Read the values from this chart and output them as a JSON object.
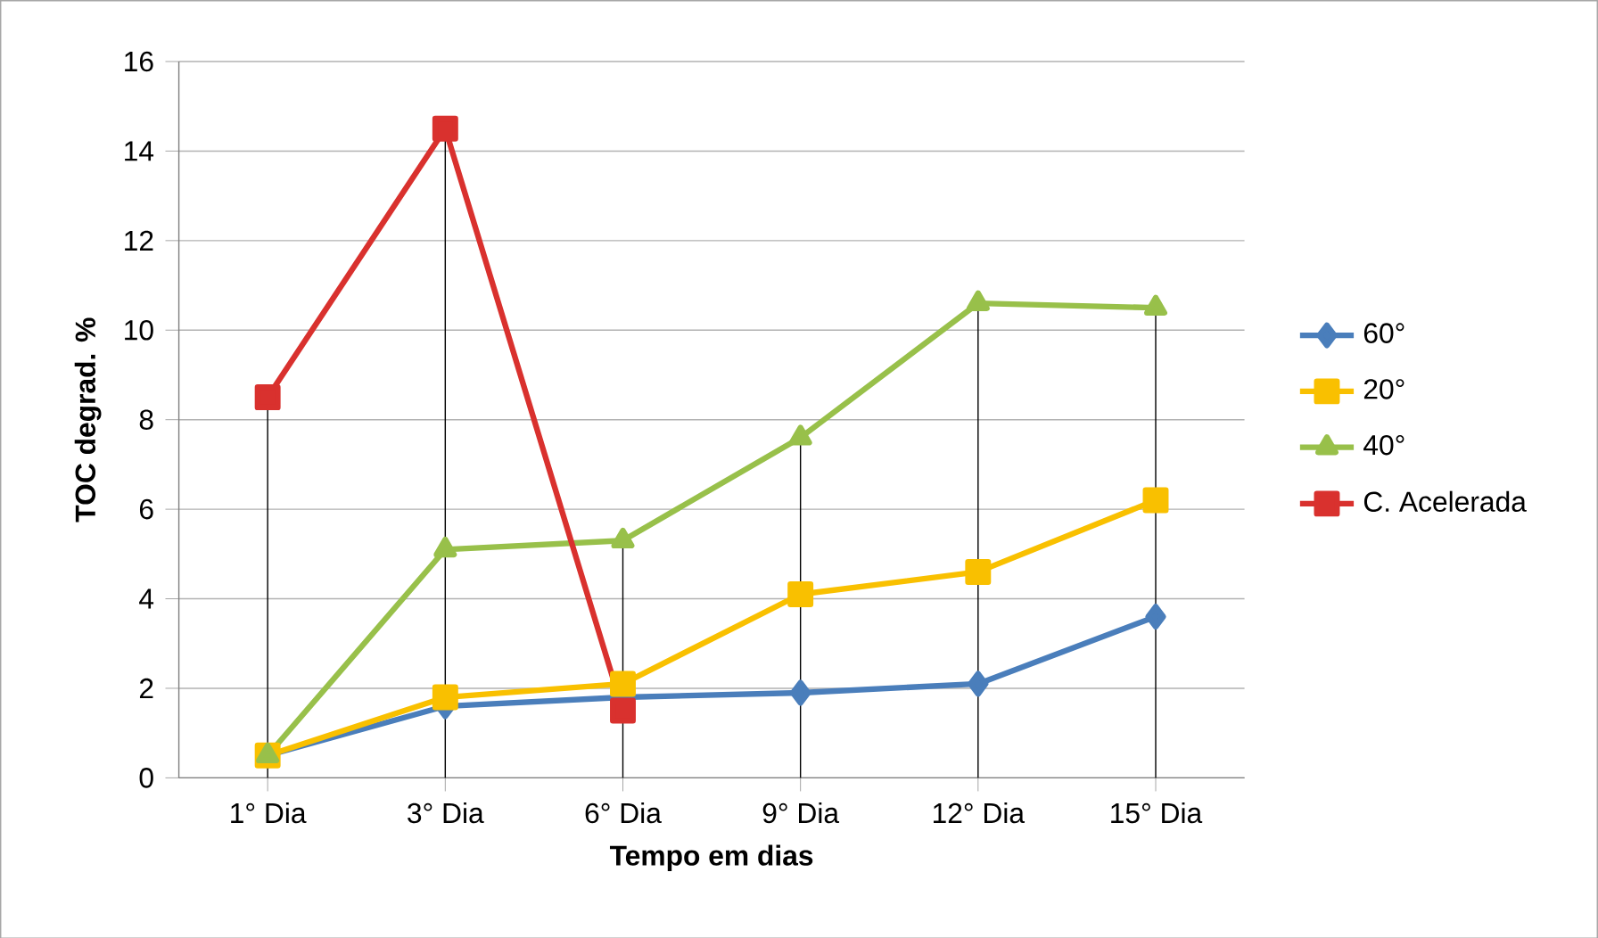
{
  "chart_data": {
    "type": "line",
    "xlabel": "Tempo em dias",
    "ylabel": "TOC degrad. %",
    "categories": [
      "1° Dia",
      "3° Dia",
      "6° Dia",
      "9° Dia",
      "12° Dia",
      "15° Dia"
    ],
    "ylim": [
      0,
      16
    ],
    "yticks": [
      0,
      2,
      4,
      6,
      8,
      10,
      12,
      14,
      16
    ],
    "grid": "y",
    "legend": "right",
    "series": [
      {
        "name": "60°",
        "color": "#4a7ebb",
        "marker": "diamond",
        "values": [
          0.5,
          1.6,
          1.8,
          1.9,
          2.1,
          3.6
        ]
      },
      {
        "name": "20°",
        "color": "#f9c000",
        "marker": "square",
        "values": [
          0.5,
          1.8,
          2.1,
          4.1,
          4.6,
          6.2
        ]
      },
      {
        "name": "40°",
        "color": "#98c04a",
        "marker": "triangle",
        "values": [
          0.5,
          5.1,
          5.3,
          7.6,
          10.6,
          10.5
        ],
        "errors": [
          null,
          null,
          [
            5.3,
            0
          ],
          [
            7.6,
            0
          ],
          [
            10.6,
            0
          ],
          [
            10.5,
            0
          ]
        ]
      },
      {
        "name": "C. Acelerada",
        "color": "#d9312e",
        "marker": "square",
        "values": [
          8.5,
          14.5,
          1.5,
          null,
          null,
          null
        ],
        "errors": [
          [
            8.5,
            0
          ],
          [
            14.5,
            0
          ],
          null,
          null,
          null,
          null
        ]
      }
    ]
  }
}
